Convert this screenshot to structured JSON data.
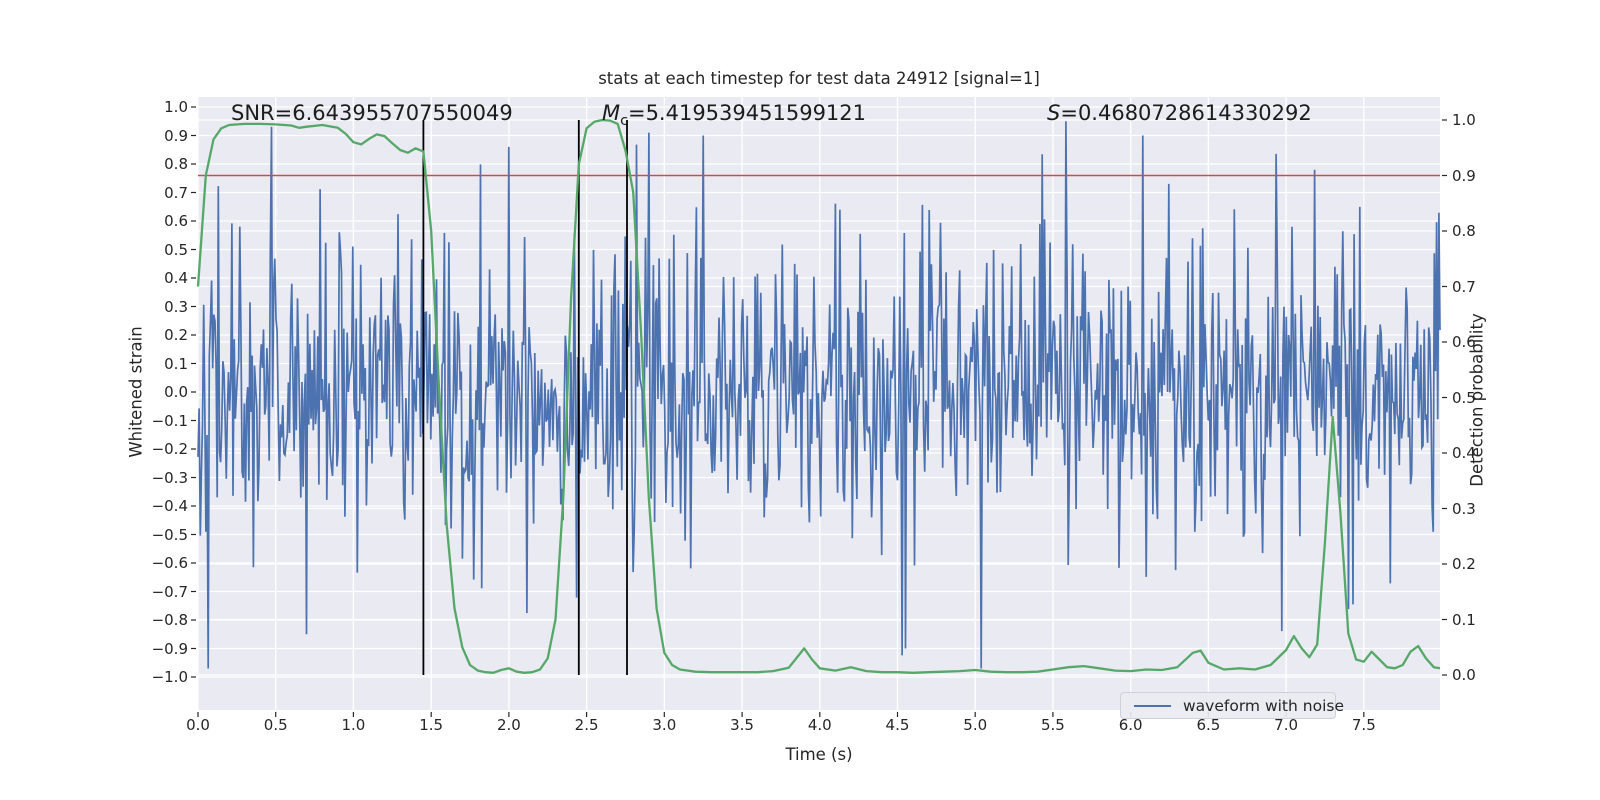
{
  "title": "stats at each timestep for test data 24912 [signal=1]",
  "annotations": {
    "snr": "SNR=6.643955707550049",
    "mc_var": "M",
    "mc_sub": "c",
    "mc_rest": "=5.419539451599121",
    "s_var": "S",
    "s_rest": "=0.4680728614330292"
  },
  "axes": {
    "xlabel": "Time (s)",
    "ylabel_left": "Whitened strain",
    "ylabel_right": "Detection probability"
  },
  "legend": {
    "label": "waveform with noise"
  },
  "colors": {
    "waveform": "#4C72B0",
    "probability": "#55A868",
    "threshold": "#C44E52",
    "event_line": "#000000",
    "axes_bg": "#EAEAF2",
    "grid": "#FFFFFF",
    "text": "#262626"
  },
  "chart_data": {
    "type": "line",
    "title": "stats at each timestep for test data 24912 [signal=1]",
    "xlabel": "Time (s)",
    "ylabel_left": "Whitened strain",
    "ylabel_right": "Detection probability",
    "xlim": [
      0,
      7.99
    ],
    "ylim_left": [
      -1.08,
      1.04
    ],
    "ylim_right": [
      -0.06,
      1.04
    ],
    "grid": true,
    "x_ticks": {
      "values": [
        0,
        0.5,
        1,
        1.5,
        2,
        2.5,
        3,
        3.5,
        4,
        4.5,
        5,
        5.5,
        6,
        6.5,
        7,
        7.5
      ],
      "labels": [
        "0.0",
        "0.5",
        "1.0",
        "1.5",
        "2.0",
        "2.5",
        "3.0",
        "3.5",
        "4.0",
        "4.5",
        "5.0",
        "5.5",
        "6.0",
        "6.5",
        "7.0",
        "7.5"
      ]
    },
    "left_ticks": {
      "values": [
        1.0,
        0.9,
        0.8,
        0.7,
        0.6,
        0.5,
        0.4,
        0.3,
        0.2,
        0.1,
        0.0,
        -0.1,
        -0.2,
        -0.3,
        -0.4,
        -0.5,
        -0.6,
        -0.7,
        -0.8,
        -0.9,
        -1.0
      ],
      "labels": [
        "1.0",
        "0.9",
        "0.8",
        "0.7",
        "0.6",
        "0.5",
        "0.4",
        "0.3",
        "0.2",
        "0.1",
        "0.0",
        "−0.1",
        "−0.2",
        "−0.3",
        "−0.4",
        "−0.5",
        "−0.6",
        "−0.7",
        "−0.8",
        "−0.9",
        "−1.0"
      ]
    },
    "right_ticks": {
      "values": [
        1.0,
        0.9,
        0.8,
        0.7,
        0.6,
        0.5,
        0.4,
        0.3,
        0.2,
        0.1,
        0.0
      ],
      "labels": [
        "1.0",
        "0.9",
        "0.8",
        "0.7",
        "0.6",
        "0.5",
        "0.4",
        "0.3",
        "0.2",
        "0.1",
        "0.0"
      ]
    },
    "threshold": {
      "axis": "right",
      "value": 0.9
    },
    "event_lines": {
      "times": [
        1.45,
        2.45,
        2.76
      ],
      "span_right_axis": [
        0.0,
        1.0
      ]
    },
    "legend_position": "lower right",
    "series": [
      {
        "name": "waveform with noise",
        "axis": "left",
        "kind": "pseudo_random_noise",
        "seed": 42,
        "n_points": 1100,
        "sigma": 0.2,
        "tail_coeff": 0.04,
        "clip": 0.97,
        "forced_spikes": [
          {
            "t": 0.47,
            "v": 0.93
          },
          {
            "t": 0.7,
            "v": -0.85
          },
          {
            "t": 2.0,
            "v": 0.86
          },
          {
            "t": 3.25,
            "v": 0.9
          },
          {
            "t": 4.55,
            "v": -0.9
          },
          {
            "t": 5.04,
            "v": -0.97
          },
          {
            "t": 5.58,
            "v": 0.95
          },
          {
            "t": 6.08,
            "v": 0.9
          },
          {
            "t": 7.18,
            "v": 0.78
          }
        ]
      },
      {
        "name": "detection probability",
        "axis": "right",
        "kind": "polyline",
        "x": [
          0,
          0.05,
          0.1,
          0.15,
          0.2,
          0.3,
          0.4,
          0.5,
          0.6,
          0.65,
          0.7,
          0.8,
          0.9,
          0.95,
          1.0,
          1.05,
          1.1,
          1.15,
          1.2,
          1.25,
          1.3,
          1.35,
          1.4,
          1.45,
          1.5,
          1.55,
          1.6,
          1.65,
          1.7,
          1.75,
          1.8,
          1.85,
          1.9,
          1.95,
          2.0,
          2.05,
          2.1,
          2.15,
          2.2,
          2.25,
          2.3,
          2.35,
          2.4,
          2.45,
          2.5,
          2.55,
          2.6,
          2.65,
          2.7,
          2.75,
          2.8,
          2.85,
          2.9,
          2.95,
          3.0,
          3.05,
          3.1,
          3.2,
          3.3,
          3.4,
          3.5,
          3.6,
          3.7,
          3.8,
          3.9,
          3.95,
          4.0,
          4.1,
          4.2,
          4.3,
          4.4,
          4.5,
          4.6,
          4.7,
          4.8,
          4.9,
          5.0,
          5.1,
          5.2,
          5.3,
          5.4,
          5.5,
          5.6,
          5.7,
          5.8,
          5.9,
          6.0,
          6.1,
          6.2,
          6.3,
          6.4,
          6.45,
          6.5,
          6.6,
          6.7,
          6.8,
          6.9,
          7.0,
          7.05,
          7.1,
          7.15,
          7.2,
          7.25,
          7.3,
          7.35,
          7.4,
          7.45,
          7.5,
          7.55,
          7.6,
          7.65,
          7.7,
          7.75,
          7.8,
          7.85,
          7.9,
          7.95,
          7.99
        ],
        "y": [
          0.7,
          0.9,
          0.965,
          0.985,
          0.991,
          0.993,
          0.993,
          0.992,
          0.99,
          0.986,
          0.988,
          0.991,
          0.986,
          0.975,
          0.96,
          0.956,
          0.966,
          0.974,
          0.971,
          0.958,
          0.946,
          0.941,
          0.949,
          0.943,
          0.8,
          0.52,
          0.27,
          0.12,
          0.05,
          0.018,
          0.008,
          0.005,
          0.004,
          0.009,
          0.012,
          0.006,
          0.004,
          0.005,
          0.01,
          0.03,
          0.1,
          0.32,
          0.68,
          0.92,
          0.985,
          0.997,
          1.0,
          0.999,
          0.993,
          0.945,
          0.87,
          0.62,
          0.32,
          0.12,
          0.04,
          0.018,
          0.01,
          0.006,
          0.005,
          0.005,
          0.005,
          0.005,
          0.007,
          0.013,
          0.048,
          0.028,
          0.012,
          0.008,
          0.014,
          0.007,
          0.005,
          0.005,
          0.004,
          0.005,
          0.006,
          0.007,
          0.009,
          0.006,
          0.005,
          0.005,
          0.006,
          0.01,
          0.014,
          0.016,
          0.012,
          0.008,
          0.007,
          0.01,
          0.009,
          0.014,
          0.04,
          0.044,
          0.022,
          0.01,
          0.012,
          0.01,
          0.018,
          0.045,
          0.07,
          0.048,
          0.032,
          0.055,
          0.24,
          0.465,
          0.29,
          0.075,
          0.028,
          0.024,
          0.042,
          0.028,
          0.014,
          0.012,
          0.018,
          0.042,
          0.052,
          0.03,
          0.014,
          0.012
        ]
      }
    ]
  }
}
